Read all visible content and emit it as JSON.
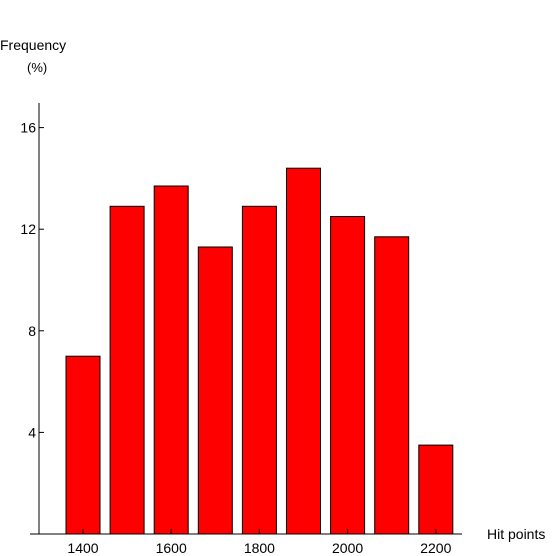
{
  "chart_data": {
    "type": "bar",
    "ylabel": "Frequency",
    "ylabel_unit": "(%)",
    "xlabel": "Hit points",
    "x": [
      1400,
      1500,
      1600,
      1700,
      1800,
      1900,
      2000,
      2100,
      2200
    ],
    "values": [
      7.0,
      12.9,
      13.7,
      11.3,
      12.9,
      14.4,
      12.5,
      11.7,
      3.5
    ],
    "xlim": [
      1300,
      2250
    ],
    "ylim": [
      0,
      17
    ],
    "x_ticks": [
      1400,
      1600,
      1800,
      2000,
      2200
    ],
    "x_tick_labels": [
      "1400",
      "1600",
      "1800",
      "2000",
      "2200"
    ],
    "y_ticks": [
      4,
      8,
      12,
      16
    ],
    "y_tick_labels": [
      "4",
      "8",
      "12",
      "16"
    ],
    "bar_color": "#ff0000",
    "grid": false,
    "legend": "none"
  }
}
